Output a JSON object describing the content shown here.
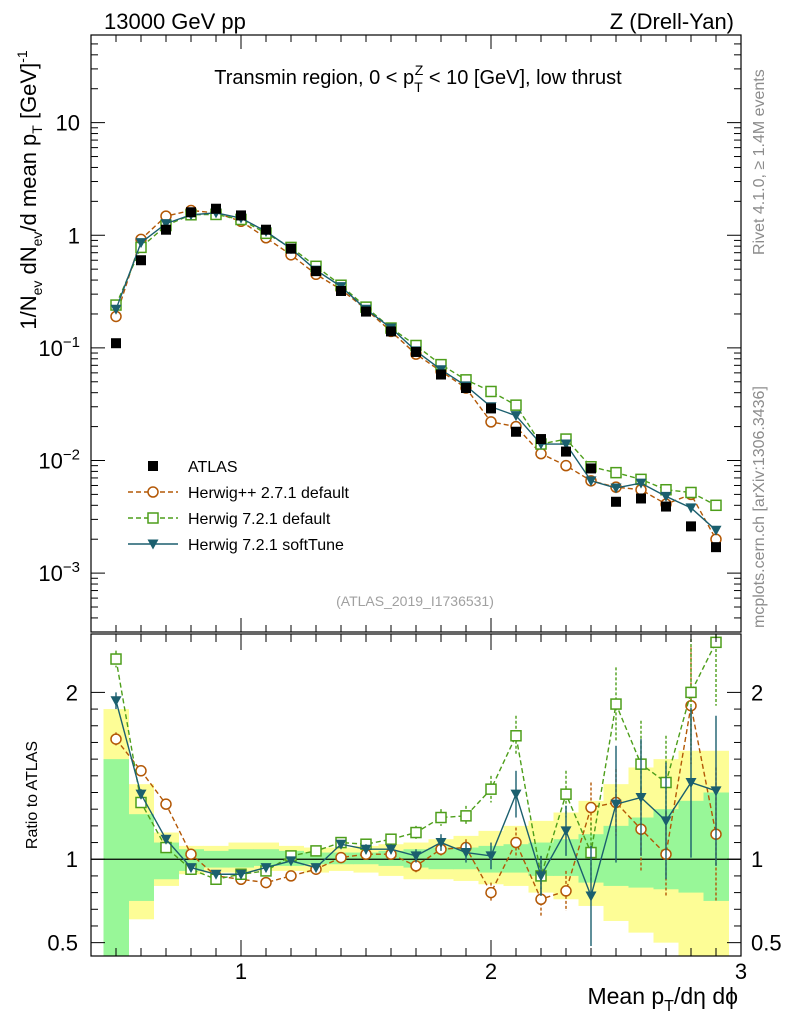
{
  "header": {
    "left": "13000 GeV pp",
    "right": "Z (Drell-Yan)"
  },
  "side_labels": {
    "rivet": "Rivet 4.1.0, ≥ 1.4M events",
    "mcplots": "mcplots.cern.ch [arXiv:1306.3436]"
  },
  "chart_data": [
    {
      "type": "scatter",
      "panel": "main",
      "title_parts": {
        "a": "Transmin region, 0 < p",
        "sup": "Z",
        "sub": "T",
        "b": " < 10 [GeV], low thrust"
      },
      "watermark": "(ATLAS_2019_I1736531)",
      "ylabel_parts": {
        "a": "1/N",
        "sub1": "ev",
        "b": " dN",
        "sub2": "ev",
        "c": "/d mean p",
        "sub3": "T",
        "d": " [GeV]",
        "sup": "-1"
      },
      "y_scale": "log",
      "ylim": [
        0.0003,
        60
      ],
      "xlim": [
        0.4,
        3.0
      ],
      "y_ticks": [
        {
          "value": 0.001,
          "base": "10",
          "exp": "−3"
        },
        {
          "value": 0.01,
          "base": "10",
          "exp": "−2"
        },
        {
          "value": 0.1,
          "base": "10",
          "exp": "−1"
        },
        {
          "value": 1,
          "label": "1"
        },
        {
          "value": 10,
          "label": "10"
        }
      ],
      "legend": [
        {
          "key": "atlas",
          "label": "ATLAS"
        },
        {
          "key": "h271",
          "label": "Herwig++ 2.7.1 default"
        },
        {
          "key": "h721",
          "label": "Herwig 7.2.1 default"
        },
        {
          "key": "soft",
          "label": "Herwig 7.2.1 softTune"
        }
      ],
      "x": [
        0.5,
        0.6,
        0.7,
        0.8,
        0.9,
        1.0,
        1.1,
        1.2,
        1.3,
        1.4,
        1.5,
        1.6,
        1.7,
        1.8,
        1.9,
        2.0,
        2.1,
        2.2,
        2.3,
        2.4,
        2.5,
        2.6,
        2.7,
        2.8,
        2.9
      ],
      "series": [
        {
          "name": "ATLAS",
          "key": "atlas",
          "color": "#000000",
          "values": [
            0.11,
            0.6,
            1.12,
            1.6,
            1.72,
            1.5,
            1.12,
            0.76,
            0.48,
            0.32,
            0.21,
            0.14,
            0.092,
            0.058,
            0.044,
            0.029,
            0.018,
            0.0155,
            0.012,
            0.0085,
            0.0043,
            0.0046,
            0.0039,
            0.0026,
            0.0017
          ]
        },
        {
          "name": "Herwig++ 2.7.1 default",
          "key": "h271",
          "color": "#b35806",
          "values": [
            0.19,
            0.92,
            1.48,
            1.66,
            1.58,
            1.33,
            0.95,
            0.67,
            0.45,
            0.33,
            0.22,
            0.14,
            0.088,
            0.062,
            0.044,
            0.022,
            0.02,
            0.0115,
            0.009,
            0.0066,
            0.0058,
            0.0055,
            0.0041,
            0.005,
            0.002
          ]
        },
        {
          "name": "Herwig 7.2.1 default",
          "key": "h721",
          "color": "#4d9e1a",
          "values": [
            0.24,
            0.78,
            1.22,
            1.52,
            1.53,
            1.38,
            1.04,
            0.78,
            0.53,
            0.36,
            0.23,
            0.15,
            0.105,
            0.071,
            0.052,
            0.041,
            0.031,
            0.014,
            0.0155,
            0.0088,
            0.0078,
            0.0068,
            0.0055,
            0.0052,
            0.004
          ]
        },
        {
          "name": "Herwig 7.2.1 softTune",
          "key": "soft",
          "color": "#1b5f6e",
          "values": [
            0.22,
            0.86,
            1.27,
            1.52,
            1.58,
            1.42,
            1.08,
            0.76,
            0.49,
            0.35,
            0.22,
            0.15,
            0.094,
            0.064,
            0.046,
            0.03,
            0.025,
            0.014,
            0.014,
            0.0066,
            0.0057,
            0.0063,
            0.0048,
            0.0038,
            0.0024
          ]
        }
      ]
    },
    {
      "type": "scatter",
      "panel": "ratio",
      "ylabel": "Ratio to ATLAS",
      "xlabel_parts": {
        "a": "Mean p",
        "sub": "T",
        "b": "/dη dϕ"
      },
      "ylim": [
        0.42,
        2.35
      ],
      "xlim": [
        0.4,
        3.0
      ],
      "reference_line": 1,
      "y_ticks": [
        0.5,
        1,
        2
      ],
      "x_ticks": [
        1,
        2,
        3
      ],
      "bin_edges": [
        0.45,
        0.55,
        0.65,
        0.75,
        0.85,
        0.95,
        1.05,
        1.15,
        1.25,
        1.35,
        1.45,
        1.55,
        1.65,
        1.75,
        1.85,
        1.95,
        2.05,
        2.15,
        2.25,
        2.35,
        2.45,
        2.55,
        2.65,
        2.75,
        2.85,
        2.95
      ],
      "band_stat": {
        "lo": [
          0.4,
          0.75,
          0.88,
          0.93,
          0.95,
          0.95,
          0.96,
          0.96,
          0.97,
          0.97,
          0.97,
          0.96,
          0.95,
          0.94,
          0.94,
          0.92,
          0.92,
          0.9,
          0.9,
          0.86,
          0.84,
          0.83,
          0.82,
          0.8,
          0.75
        ],
        "hi": [
          1.6,
          1.27,
          1.1,
          1.06,
          1.05,
          1.06,
          1.06,
          1.05,
          1.04,
          1.04,
          1.04,
          1.05,
          1.06,
          1.07,
          1.07,
          1.08,
          1.09,
          1.1,
          1.12,
          1.15,
          1.2,
          1.25,
          1.3,
          1.35,
          1.4
        ]
      },
      "band_total": {
        "lo": [
          0.35,
          0.64,
          0.84,
          0.91,
          0.92,
          0.92,
          0.93,
          0.93,
          0.92,
          0.93,
          0.92,
          0.9,
          0.88,
          0.88,
          0.87,
          0.85,
          0.84,
          0.8,
          0.76,
          0.72,
          0.63,
          0.56,
          0.5,
          0.42,
          0.42
        ],
        "hi": [
          1.9,
          1.45,
          1.16,
          1.08,
          1.08,
          1.1,
          1.1,
          1.08,
          1.07,
          1.07,
          1.08,
          1.09,
          1.1,
          1.12,
          1.14,
          1.17,
          1.2,
          1.23,
          1.28,
          1.35,
          1.45,
          1.55,
          1.6,
          1.65,
          1.65
        ]
      },
      "band_colors": {
        "total": "#fdfd96",
        "stat": "#98f798"
      },
      "x": [
        0.5,
        0.6,
        0.7,
        0.8,
        0.9,
        1.0,
        1.1,
        1.2,
        1.3,
        1.4,
        1.5,
        1.6,
        1.7,
        1.8,
        1.9,
        2.0,
        2.1,
        2.2,
        2.3,
        2.4,
        2.5,
        2.6,
        2.7,
        2.8,
        2.9
      ],
      "series": [
        {
          "name": "Herwig++ 2.7.1 default",
          "key": "h271",
          "color": "#b35806",
          "values": [
            1.72,
            1.53,
            1.33,
            1.03,
            0.9,
            0.88,
            0.86,
            0.9,
            0.94,
            1.01,
            1.03,
            1.03,
            0.96,
            1.06,
            1.07,
            0.8,
            1.1,
            0.76,
            0.81,
            1.31,
            1.34,
            1.18,
            1.03,
            1.92,
            1.15
          ],
          "err": [
            0.04,
            0.03,
            0.02,
            0.02,
            0.02,
            0.02,
            0.02,
            0.02,
            0.02,
            0.02,
            0.03,
            0.03,
            0.04,
            0.04,
            0.05,
            0.06,
            0.09,
            0.1,
            0.12,
            0.15,
            0.2,
            0.25,
            0.25,
            0.35,
            0.4
          ]
        },
        {
          "name": "Herwig 7.2.1 default",
          "key": "h721",
          "color": "#4d9e1a",
          "values": [
            2.2,
            1.34,
            1.07,
            0.94,
            0.88,
            0.91,
            0.93,
            1.02,
            1.05,
            1.1,
            1.09,
            1.12,
            1.16,
            1.25,
            1.26,
            1.42,
            1.74,
            0.9,
            1.39,
            1.04,
            1.93,
            1.57,
            1.46,
            2.0,
            2.3
          ],
          "err": [
            0.05,
            0.03,
            0.02,
            0.02,
            0.02,
            0.02,
            0.02,
            0.02,
            0.02,
            0.02,
            0.03,
            0.03,
            0.04,
            0.05,
            0.06,
            0.08,
            0.12,
            0.12,
            0.14,
            0.18,
            0.22,
            0.26,
            0.28,
            0.32,
            0.38
          ]
        },
        {
          "name": "Herwig 7.2.1 softTune",
          "key": "soft",
          "color": "#1b5f6e",
          "values": [
            1.95,
            1.39,
            1.12,
            0.95,
            0.91,
            0.91,
            0.95,
            0.99,
            0.95,
            1.09,
            1.06,
            1.06,
            1.02,
            1.1,
            1.04,
            1.02,
            1.39,
            0.9,
            1.17,
            0.78,
            1.33,
            1.37,
            1.23,
            1.46,
            1.41
          ],
          "err": [
            0.05,
            0.03,
            0.02,
            0.02,
            0.02,
            0.02,
            0.02,
            0.02,
            0.02,
            0.02,
            0.03,
            0.03,
            0.04,
            0.05,
            0.06,
            0.08,
            0.14,
            0.12,
            0.15,
            0.3,
            0.35,
            0.35,
            0.35,
            0.45,
            0.45
          ]
        }
      ]
    }
  ]
}
